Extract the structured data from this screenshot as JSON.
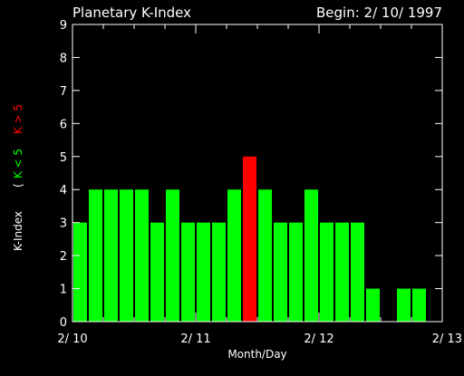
{
  "chart_data": {
    "type": "bar",
    "title": "Planetary K-Index",
    "subtitle": "Begin: 2/ 10/ 1997",
    "xlabel": "Month/Day",
    "ylabel": "K-Index",
    "legend": {
      "open": "(",
      "low": "K < 5",
      "high": "K > 5",
      "low_color": "#00ff00",
      "high_color": "#ff0000"
    },
    "ylim": [
      0,
      9
    ],
    "yticks": [
      "0",
      "1",
      "2",
      "3",
      "4",
      "5",
      "6",
      "7",
      "8",
      "9"
    ],
    "xlim": [
      0,
      3
    ],
    "xticks": [
      {
        "label": "2/ 10",
        "x": 0
      },
      {
        "label": "2/ 11",
        "x": 1
      },
      {
        "label": "2/ 12",
        "x": 2
      },
      {
        "label": "2/ 13",
        "x": 3
      }
    ],
    "bars_per_day": 8,
    "values": [
      3,
      4,
      4,
      4,
      4,
      3,
      4,
      3,
      3,
      3,
      4,
      5,
      4,
      3,
      3,
      4,
      3,
      3,
      3,
      1,
      0,
      1,
      1,
      0
    ],
    "colors": {
      "low": "#00ff00",
      "high": "#ff0000",
      "threshold": 5,
      "axis": "#ffffff",
      "background": "#000000"
    }
  }
}
